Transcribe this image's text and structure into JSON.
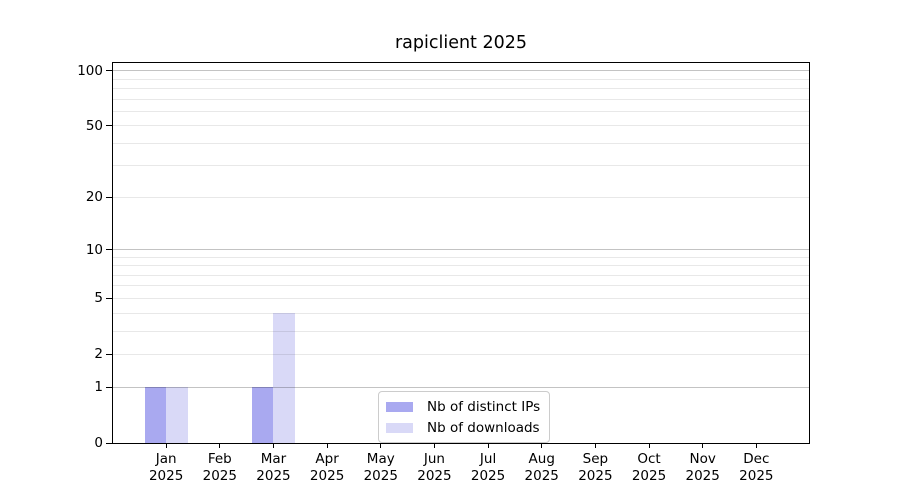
{
  "chart_data": {
    "type": "bar",
    "title": "rapiclient 2025",
    "categories": [
      "Jan",
      "Feb",
      "Mar",
      "Apr",
      "May",
      "Jun",
      "Jul",
      "Aug",
      "Sep",
      "Oct",
      "Nov",
      "Dec"
    ],
    "year_label": "2025",
    "series": [
      {
        "name": "Nb of distinct IPs",
        "color": "#a9a9f0",
        "values": [
          1,
          0,
          1,
          0,
          0,
          0,
          0,
          0,
          0,
          0,
          0,
          0
        ]
      },
      {
        "name": "Nb of downloads",
        "color": "#d9d9f7",
        "values": [
          1,
          0,
          4,
          0,
          0,
          0,
          0,
          0,
          0,
          0,
          0,
          0
        ]
      }
    ],
    "y_scale": "log1p",
    "ylim": [
      0,
      110
    ],
    "y_tick_values": [
      0,
      1,
      2,
      5,
      10,
      20,
      50,
      100
    ],
    "y_major_gridlines": [
      1,
      10,
      100
    ],
    "y_minor_gridlines": [
      2,
      3,
      4,
      5,
      6,
      7,
      8,
      9,
      20,
      30,
      40,
      50,
      60,
      70,
      80,
      90
    ],
    "legend_position": "lower center",
    "grid": true
  },
  "colors": {
    "background": "#ffffff",
    "spine": "#000000",
    "text": "#000000",
    "major_grid": "rgba(0,0,0,0.235)",
    "minor_grid": "rgba(0,0,0,0.09)",
    "legend_border": "#cccccc",
    "legend_background": "#ffffff"
  }
}
